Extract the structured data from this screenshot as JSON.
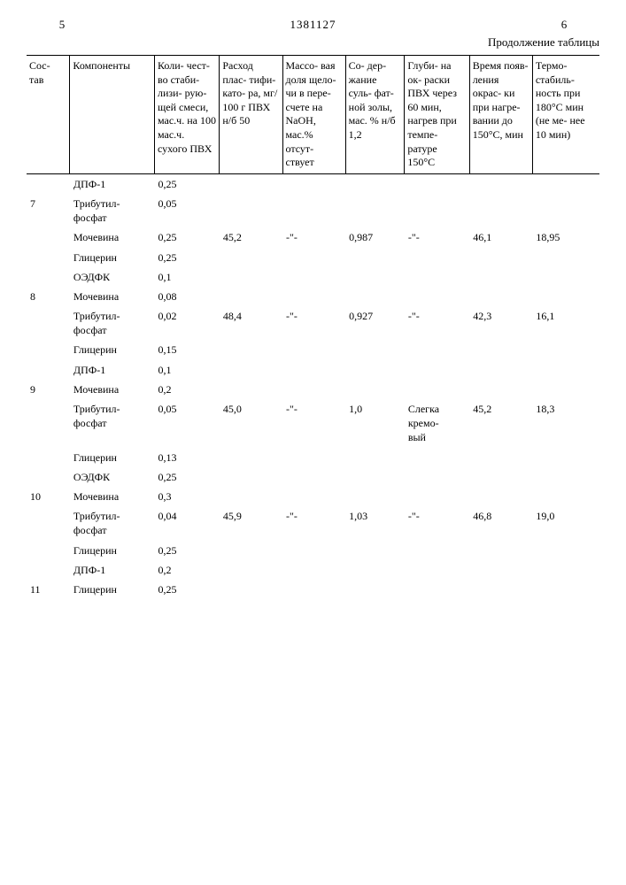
{
  "header": {
    "page_left": "5",
    "doc_number": "1381127",
    "page_right": "6",
    "continuation": "Продолжение таблицы"
  },
  "columns": [
    "Сос-\nтав",
    "Компоненты",
    "Коли-\nчест-\nво\nстаби-\nлизи-\nрую-\nщей\nсмеси,\nмас.ч.\nна 100\nмас.ч.\nсухого\nПВХ",
    "Расход\nплас-\nтифи-\nкато-\nра,\nмг/\n100 г\nПВХ\n\nн/б 50",
    "Массо-\nвая\nдоля\nщело-\nчи в\nпере-\nсчете\nна\nNaOH,\nмас.%\n\nотсут-\nствует",
    "Со-\nдер-\nжание\nсуль-\nфат-\nной\nзолы,\nмас.\n%\n\n\nн/б\n1,2",
    "Глуби-\nна ок-\nраски\nПВХ\nчерез\n60\nмин,\nнагрев\nпри\nтемпе-\nратуре\n150°С",
    "Время\nпояв-\nления\nокрас-\nки\nпри\nнагре-\nвании\nдо\n150°С,\nмин",
    "Термо-\nстабиль-\nность\nпри\n180°С\nмин\n(не ме-\nнее\n10 мин)"
  ],
  "rows": [
    {
      "c0": "",
      "c1": "ДПФ-1",
      "c2": "0,25",
      "c3": "",
      "c4": "",
      "c5": "",
      "c6": "",
      "c7": "",
      "c8": ""
    },
    {
      "c0": "7",
      "c1": "Трибутил-\nфосфат",
      "c2": "0,05",
      "c3": "",
      "c4": "",
      "c5": "",
      "c6": "",
      "c7": "",
      "c8": ""
    },
    {
      "c0": "",
      "c1": "Мочевина",
      "c2": "0,25",
      "c3": "45,2",
      "c4": "-\"-",
      "c5": "0,987",
      "c6": "-\"-",
      "c7": "46,1",
      "c8": "18,95"
    },
    {
      "c0": "",
      "c1": "Глицерин",
      "c2": "0,25",
      "c3": "",
      "c4": "",
      "c5": "",
      "c6": "",
      "c7": "",
      "c8": ""
    },
    {
      "c0": "",
      "c1": "ОЭДФК",
      "c2": "0,1",
      "c3": "",
      "c4": "",
      "c5": "",
      "c6": "",
      "c7": "",
      "c8": ""
    },
    {
      "c0": "8",
      "c1": "Мочевина",
      "c2": "0,08",
      "c3": "",
      "c4": "",
      "c5": "",
      "c6": "",
      "c7": "",
      "c8": ""
    },
    {
      "c0": "",
      "c1": "Трибутил-\nфосфат",
      "c2": "0,02",
      "c3": "48,4",
      "c4": "-\"-",
      "c5": "0,927",
      "c6": "-\"-",
      "c7": "42,3",
      "c8": "16,1"
    },
    {
      "c0": "",
      "c1": "Глицерин",
      "c2": "0,15",
      "c3": "",
      "c4": "",
      "c5": "",
      "c6": "",
      "c7": "",
      "c8": ""
    },
    {
      "c0": "",
      "c1": "ДПФ-1",
      "c2": "0,1",
      "c3": "",
      "c4": "",
      "c5": "",
      "c6": "",
      "c7": "",
      "c8": ""
    },
    {
      "c0": "9",
      "c1": "Мочевина",
      "c2": "0,2",
      "c3": "",
      "c4": "",
      "c5": "",
      "c6": "",
      "c7": "",
      "c8": ""
    },
    {
      "c0": "",
      "c1": "Трибутил-\nфосфат",
      "c2": "0,05",
      "c3": "45,0",
      "c4": "-\"-",
      "c5": "1,0",
      "c6": "Слегка\nкремо-\nвый",
      "c7": "45,2",
      "c8": "18,3"
    },
    {
      "c0": "",
      "c1": "Глицерин",
      "c2": "0,13",
      "c3": "",
      "c4": "",
      "c5": "",
      "c6": "",
      "c7": "",
      "c8": ""
    },
    {
      "c0": "",
      "c1": "ОЭДФК",
      "c2": "0,25",
      "c3": "",
      "c4": "",
      "c5": "",
      "c6": "",
      "c7": "",
      "c8": ""
    },
    {
      "c0": "10",
      "c1": "Мочевина",
      "c2": "0,3",
      "c3": "",
      "c4": "",
      "c5": "",
      "c6": "",
      "c7": "",
      "c8": ""
    },
    {
      "c0": "",
      "c1": "Трибутил-\nфосфат",
      "c2": "0,04",
      "c3": "45,9",
      "c4": "-\"-",
      "c5": "1,03",
      "c6": "-\"-",
      "c7": "46,8",
      "c8": "19,0"
    },
    {
      "c0": "",
      "c1": "Глицерин",
      "c2": "0,25",
      "c3": "",
      "c4": "",
      "c5": "",
      "c6": "",
      "c7": "",
      "c8": ""
    },
    {
      "c0": "",
      "c1": "ДПФ-1",
      "c2": "0,2",
      "c3": "",
      "c4": "",
      "c5": "",
      "c6": "",
      "c7": "",
      "c8": ""
    },
    {
      "c0": "11",
      "c1": "Глицерин",
      "c2": "0,25",
      "c3": "",
      "c4": "",
      "c5": "",
      "c6": "",
      "c7": "",
      "c8": ""
    }
  ]
}
